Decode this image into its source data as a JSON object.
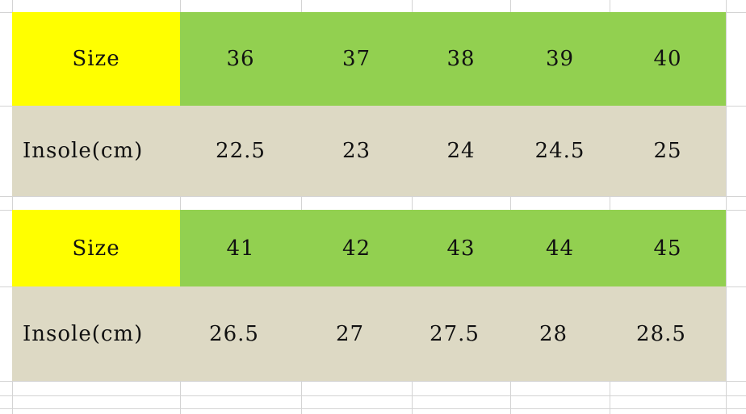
{
  "colors": {
    "size_label_bg": "#ffff00",
    "size_row_bg": "#92d050",
    "insole_row_bg": "#ddd9c4"
  },
  "tables": [
    {
      "size_label": "Size",
      "sizes": [
        "36",
        "37",
        "38",
        "39",
        "40"
      ],
      "insole_label": "Insole(cm)",
      "insoles": [
        "22.5",
        "23",
        "24",
        "24.5",
        "25"
      ]
    },
    {
      "size_label": "Size",
      "sizes": [
        "41",
        "42",
        "43",
        "44",
        "45"
      ],
      "insole_label": "Insole(cm)",
      "insoles": [
        "26.5",
        "27",
        "27.5",
        "28",
        "28.5"
      ]
    }
  ]
}
